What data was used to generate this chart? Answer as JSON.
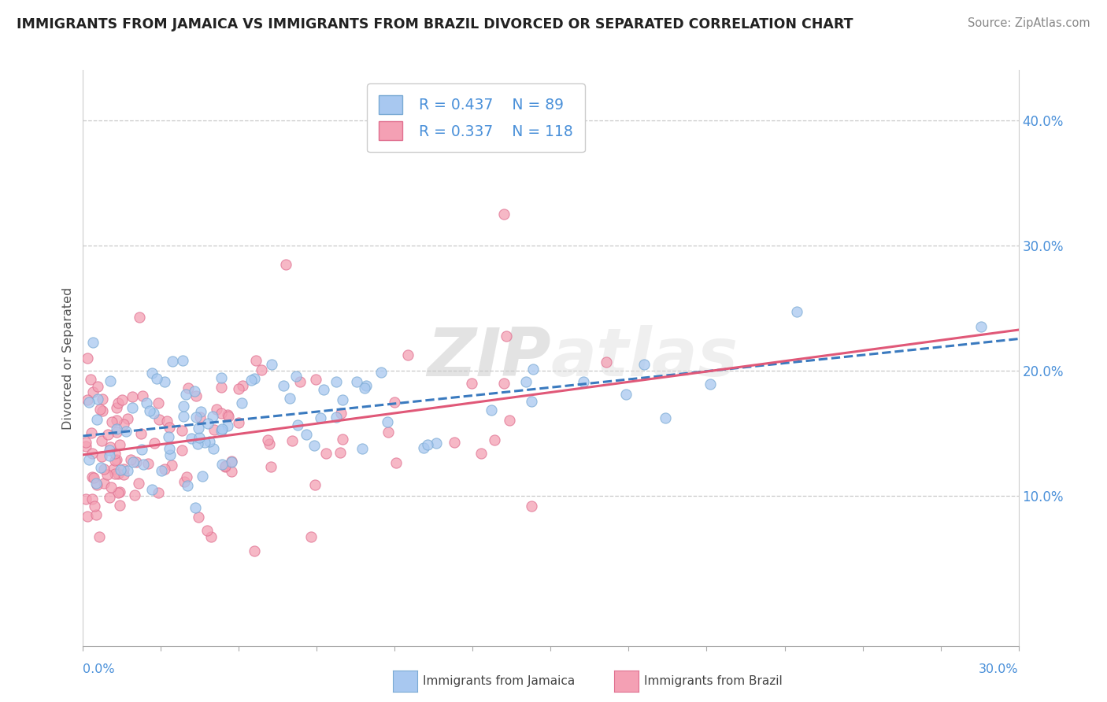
{
  "title": "IMMIGRANTS FROM JAMAICA VS IMMIGRANTS FROM BRAZIL DIVORCED OR SEPARATED CORRELATION CHART",
  "source": "Source: ZipAtlas.com",
  "ylabel": "Divorced or Separated",
  "background_color": "#ffffff",
  "grid_color": "#c8c8c8",
  "jamaica_color": "#a8c8f0",
  "brazil_color": "#f4a0b4",
  "jamaica_edge": "#7aaad4",
  "brazil_edge": "#e07090",
  "trendline_jamaica": "#3a7abf",
  "trendline_brazil": "#e05878",
  "watermark": "ZIPatlas",
  "legend_R_jamaica": "R = 0.437",
  "legend_N_jamaica": "N = 89",
  "legend_R_brazil": "R = 0.337",
  "legend_N_brazil": "N = 118",
  "xlim": [
    0.0,
    0.3
  ],
  "ylim": [
    -0.02,
    0.44
  ],
  "legend_text_color": "#4a90d9",
  "title_color": "#222222",
  "source_color": "#888888",
  "axis_label_color": "#4a90d9",
  "ylabel_color": "#555555"
}
